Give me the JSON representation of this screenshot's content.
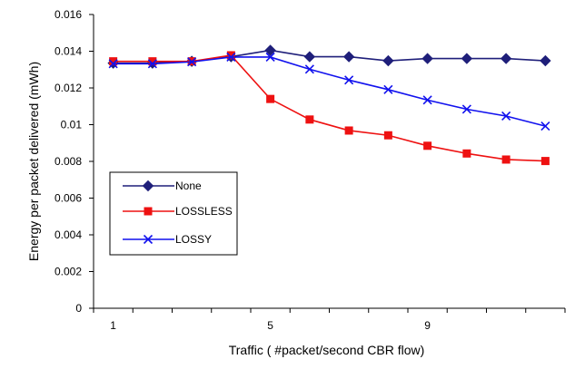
{
  "chart_data": {
    "type": "line",
    "xlabel": "Traffic ( #packet/second CBR flow)",
    "ylabel": "Energy  per packet delivered (mWh)",
    "x": [
      1,
      2,
      3,
      4,
      5,
      6,
      7,
      8,
      9,
      10,
      11,
      12
    ],
    "x_tick_labels": [
      "1",
      "5",
      "9"
    ],
    "x_tick_values": [
      1,
      5,
      9
    ],
    "ylim": [
      0,
      0.016
    ],
    "y_ticks": [
      0,
      0.002,
      0.004,
      0.006,
      0.008,
      0.01,
      0.012,
      0.014,
      0.016
    ],
    "y_tick_labels": [
      "0",
      "0.002",
      "0.004",
      "0.006",
      "0.008",
      "0.01",
      "0.012",
      "0.014",
      "0.016"
    ],
    "grid": false,
    "legend_placement": "left",
    "series": [
      {
        "name": "None",
        "color": "#1f1f7a",
        "marker": "diamond",
        "values": [
          0.01335,
          0.01335,
          0.01345,
          0.0137,
          0.01405,
          0.0137,
          0.0137,
          0.01348,
          0.0136,
          0.0136,
          0.0136,
          0.01348
        ]
      },
      {
        "name": "LOSSLESS",
        "color": "#ee1111",
        "marker": "square",
        "values": [
          0.01345,
          0.01345,
          0.01345,
          0.01378,
          0.0114,
          0.01028,
          0.00968,
          0.00942,
          0.00885,
          0.00843,
          0.0081,
          0.00802
        ]
      },
      {
        "name": "LOSSY",
        "color": "#1111ee",
        "marker": "x",
        "values": [
          0.01332,
          0.01332,
          0.01342,
          0.01368,
          0.01368,
          0.01302,
          0.01243,
          0.01191,
          0.01134,
          0.01084,
          0.01047,
          0.00992
        ]
      }
    ]
  }
}
